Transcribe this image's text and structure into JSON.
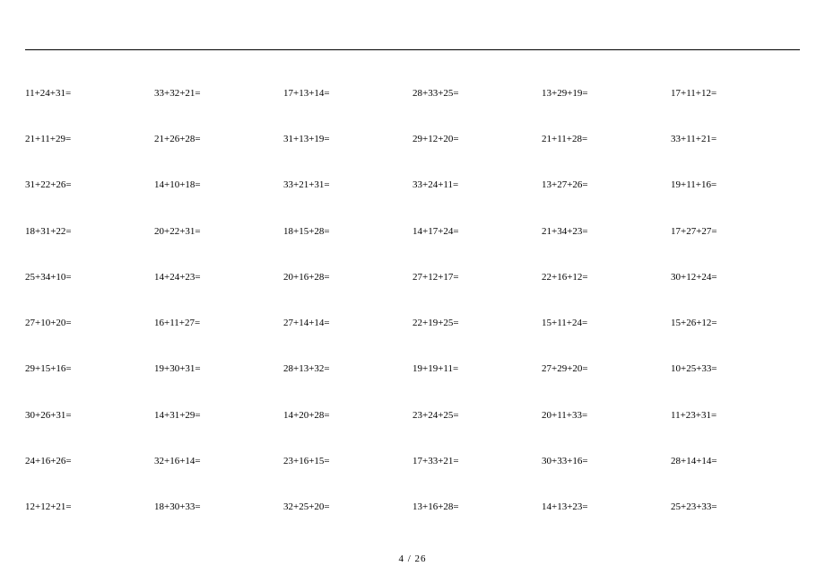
{
  "type": "table",
  "columns": 6,
  "rows": 10,
  "cell_fontsize": 11,
  "background_color": "#ffffff",
  "text_color": "#000000",
  "rule_color": "#000000",
  "footer": "4 / 26",
  "footer_fontsize": 11,
  "cells": [
    [
      "11+24+31=",
      "33+32+21=",
      "17+13+14=",
      "28+33+25=",
      "13+29+19=",
      "17+11+12="
    ],
    [
      "21+11+29=",
      "21+26+28=",
      "31+13+19=",
      "29+12+20=",
      "21+11+28=",
      "33+11+21="
    ],
    [
      "31+22+26=",
      "14+10+18=",
      "33+21+31=",
      "33+24+11=",
      "13+27+26=",
      "19+11+16="
    ],
    [
      "18+31+22=",
      "20+22+31=",
      "18+15+28=",
      "14+17+24=",
      "21+34+23=",
      "17+27+27="
    ],
    [
      "25+34+10=",
      "14+24+23=",
      "20+16+28=",
      "27+12+17=",
      "22+16+12=",
      "30+12+24="
    ],
    [
      "27+10+20=",
      "16+11+27=",
      "27+14+14=",
      "22+19+25=",
      "15+11+24=",
      "15+26+12="
    ],
    [
      "29+15+16=",
      "19+30+31=",
      "28+13+32=",
      "19+19+11=",
      "27+29+20=",
      "10+25+33="
    ],
    [
      "30+26+31=",
      "14+31+29=",
      "14+20+28=",
      "23+24+25=",
      "20+11+33=",
      "11+23+31="
    ],
    [
      "24+16+26=",
      "32+16+14=",
      "23+16+15=",
      "17+33+21=",
      "30+33+16=",
      "28+14+14="
    ],
    [
      "12+12+21=",
      "18+30+33=",
      "32+25+20=",
      "13+16+28=",
      "14+13+23=",
      "25+23+33="
    ]
  ]
}
